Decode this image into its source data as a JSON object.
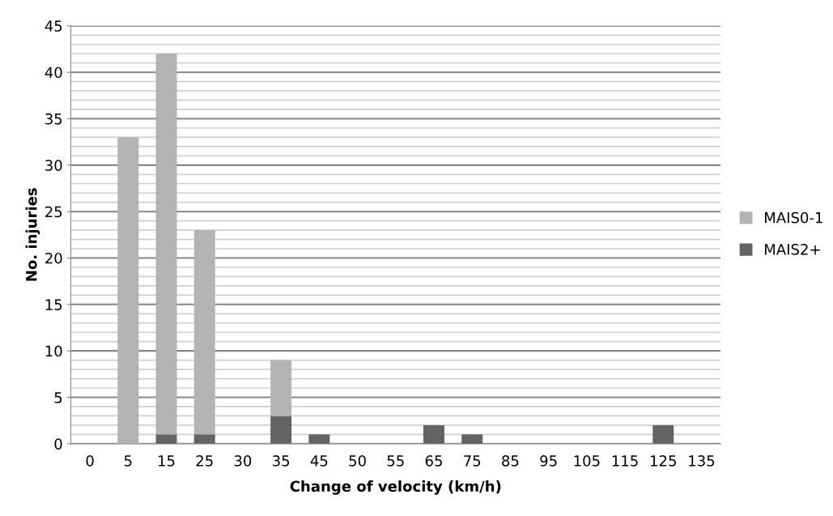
{
  "chart_data": {
    "type": "bar",
    "stacked": true,
    "xlabel": "Change of velocity (km/h)",
    "ylabel": "No. injuries",
    "categories": [
      "0",
      "5",
      "15",
      "25",
      "30",
      "35",
      "45",
      "50",
      "55",
      "65",
      "75",
      "85",
      "95",
      "105",
      "115",
      "125",
      "135"
    ],
    "series": [
      {
        "name": "MAIS2+",
        "color": "#636363",
        "values": [
          0,
          0,
          1,
          1,
          0,
          3,
          1,
          0,
          0,
          2,
          1,
          0,
          0,
          0,
          0,
          2,
          0
        ]
      },
      {
        "name": "MAIS0-1",
        "color": "#b3b3b3",
        "values": [
          0,
          33,
          41,
          22,
          0,
          6,
          0,
          0,
          0,
          0,
          0,
          0,
          0,
          0,
          0,
          0,
          0
        ]
      }
    ],
    "ylim": [
      0,
      45
    ],
    "yticks": [
      0,
      {
        "value": 1,
        "label": null
      },
      {
        "value": 2,
        "label": null
      },
      {
        "value": 3,
        "label": null
      },
      {
        "value": 4,
        "label": null
      },
      5,
      {
        "value": 6,
        "label": null
      },
      {
        "value": 7,
        "label": null
      },
      {
        "value": 8,
        "label": null
      },
      {
        "value": 9,
        "label": null
      },
      10,
      {
        "value": 11,
        "label": null
      },
      {
        "value": 12,
        "label": null
      },
      {
        "value": 13,
        "label": null
      },
      {
        "value": 14,
        "label": null
      },
      15,
      {
        "value": 16,
        "label": null
      },
      {
        "value": 17,
        "label": null
      },
      {
        "value": 18,
        "label": null
      },
      {
        "value": 19,
        "label": null
      },
      20,
      {
        "value": 21,
        "label": null
      },
      {
        "value": 22,
        "label": null
      },
      {
        "value": 23,
        "label": null
      },
      {
        "value": 24,
        "label": null
      },
      25,
      {
        "value": 26,
        "label": null
      },
      {
        "value": 27,
        "label": null
      },
      {
        "value": 28,
        "label": null
      },
      {
        "value": 29,
        "label": null
      },
      30,
      {
        "value": 31,
        "label": null
      },
      {
        "value": 32,
        "label": null
      },
      {
        "value": 33,
        "label": null
      },
      {
        "value": 34,
        "label": null
      },
      35,
      {
        "value": 36,
        "label": null
      },
      {
        "value": 37,
        "label": null
      },
      {
        "value": 38,
        "label": null
      },
      {
        "value": 39,
        "label": null
      },
      40,
      {
        "value": 41,
        "label": null
      },
      {
        "value": 42,
        "label": null
      },
      {
        "value": 43,
        "label": null
      },
      {
        "value": 44,
        "label": null
      },
      45
    ],
    "grid": "y",
    "legend": "right"
  }
}
